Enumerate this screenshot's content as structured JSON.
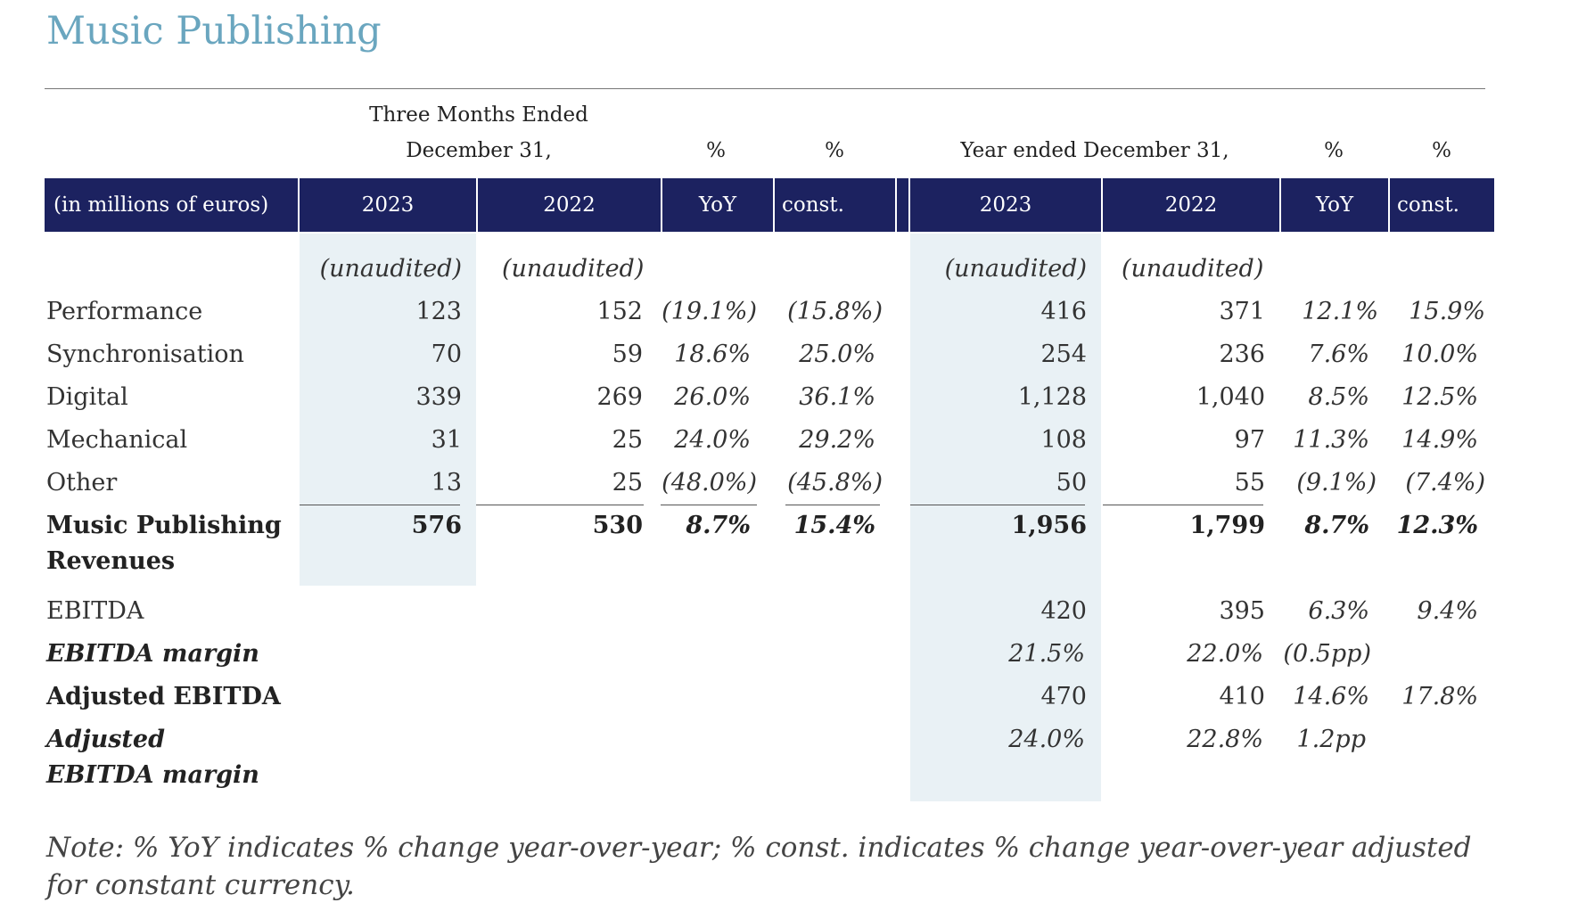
{
  "title": "Music Publishing",
  "header": {
    "q_line1": "Three Months Ended",
    "q_line2": "December 31,",
    "pct": "%",
    "year": "Year ended December 31,"
  },
  "band": {
    "unit": "(in millions of euros)",
    "cols": [
      "2023",
      "2022",
      "YoY",
      "const.",
      "2023",
      "2022",
      "YoY",
      "const."
    ]
  },
  "unaudited": "(unaudited)",
  "rows": [
    {
      "label": "Performance",
      "q2023": "123",
      "q2022": "152",
      "qyoy": "(19.1%)",
      "qconst": "(15.8%)",
      "y2023": "416",
      "y2022": "371",
      "yyoy": "12.1%",
      "yconst": "15.9%"
    },
    {
      "label": "Synchronisation",
      "q2023": "70",
      "q2022": "59",
      "qyoy": "18.6%",
      "qconst": "25.0%",
      "y2023": "254",
      "y2022": "236",
      "yyoy": "7.6%",
      "yconst": "10.0%"
    },
    {
      "label": "Digital",
      "q2023": "339",
      "q2022": "269",
      "qyoy": "26.0%",
      "qconst": "36.1%",
      "y2023": "1,128",
      "y2022": "1,040",
      "yyoy": "8.5%",
      "yconst": "12.5%"
    },
    {
      "label": "Mechanical",
      "q2023": "31",
      "q2022": "25",
      "qyoy": "24.0%",
      "qconst": "29.2%",
      "y2023": "108",
      "y2022": "97",
      "yyoy": "11.3%",
      "yconst": "14.9%"
    },
    {
      "label": "Other",
      "q2023": "13",
      "q2022": "25",
      "qyoy": "(48.0%)",
      "qconst": "(45.8%)",
      "y2023": "50",
      "y2022": "55",
      "yyoy": "(9.1%)",
      "yconst": "(7.4%)"
    }
  ],
  "total": {
    "label_1": "Music Publishing",
    "label_2": "Revenues",
    "q2023": "576",
    "q2022": "530",
    "qyoy": "8.7%",
    "qconst": "15.4%",
    "y2023": "1,956",
    "y2022": "1,799",
    "yyoy": "8.7%",
    "yconst": "12.3%"
  },
  "ebitda": {
    "label": "EBITDA",
    "y2023": "420",
    "y2022": "395",
    "yyoy": "6.3%",
    "yconst": "9.4%"
  },
  "ebitda_margin": {
    "label": "EBITDA margin",
    "y2023": "21.5%",
    "y2022": "22.0%",
    "yyoy": "(0.5pp)"
  },
  "adj_ebitda": {
    "label": "Adjusted EBITDA",
    "y2023": "470",
    "y2022": "410",
    "yyoy": "14.6%",
    "yconst": "17.8%"
  },
  "adj_margin": {
    "label_1": "Adjusted",
    "label_2": "EBITDA margin",
    "y2023": "24.0%",
    "y2022": "22.8%",
    "yyoy": "1.2pp"
  },
  "note": "Note: % YoY indicates % change year-over-year; % const. indicates % change year-over-year adjusted for constant currency.",
  "colors": {
    "title": "#6aa6bf",
    "band": "#1c2260",
    "shade": "#e9f1f5"
  }
}
